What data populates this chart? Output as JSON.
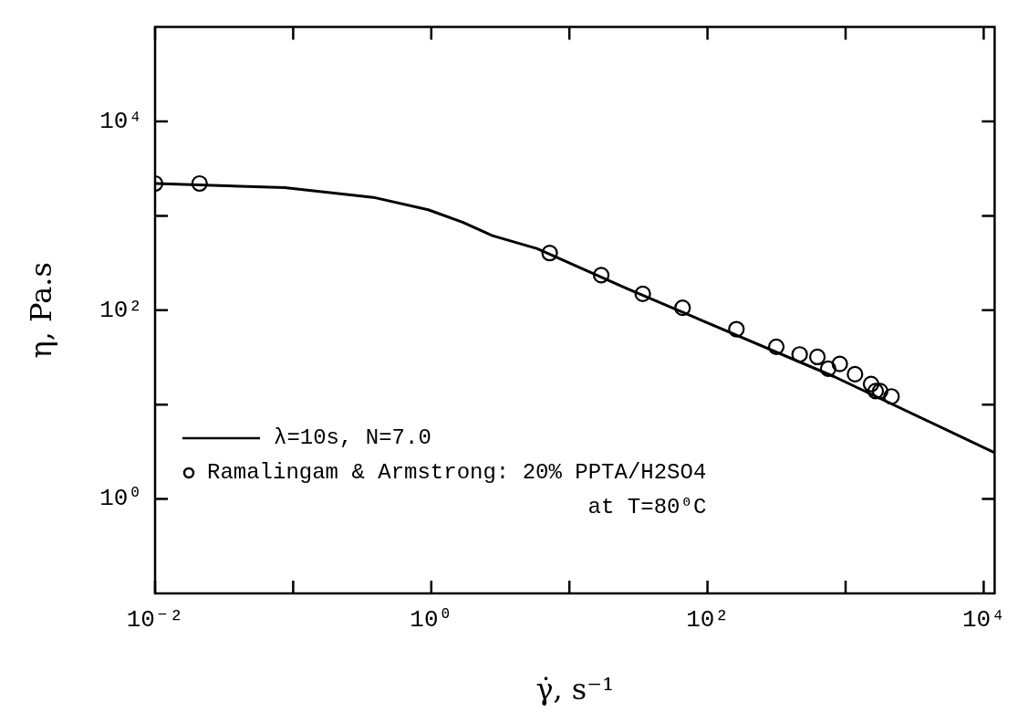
{
  "chart_data": {
    "type": "scatter",
    "xlabel": "γ̇, s⁻¹",
    "ylabel": "η, Pa.s",
    "log": "xy",
    "legend": "bottom left",
    "grid": false,
    "xlim": [
      0.01,
      12000
    ],
    "ylim": [
      0.1,
      100000
    ],
    "xticks": [
      {
        "value": 0.01,
        "label": "10⁻²"
      },
      {
        "value": 0.1,
        "label": null
      },
      {
        "value": 1,
        "label": "10⁰"
      },
      {
        "value": 10,
        "label": null
      },
      {
        "value": 100,
        "label": "10²"
      },
      {
        "value": 1000,
        "label": null
      },
      {
        "value": 10000,
        "label": "10⁴"
      }
    ],
    "yticks": [
      {
        "value": 1,
        "label": "10⁰"
      },
      {
        "value": 10,
        "label": null
      },
      {
        "value": 100,
        "label": "10²"
      },
      {
        "value": 1000,
        "label": null
      },
      {
        "value": 10000,
        "label": "10⁴"
      }
    ],
    "series": [
      {
        "name": "λ=10s, N=7.0",
        "type": "line",
        "marker": "none",
        "line_style": "solid",
        "color": "#000000",
        "x": [
          0.01,
          0.0865,
          0.38,
          0.95,
          1.7,
          2.77,
          5.85,
          25.9,
          832,
          12000
        ],
        "values": [
          2200,
          1990,
          1570,
          1160,
          850,
          617,
          449,
          170,
          19.7,
          3.1
        ]
      },
      {
        "name": "Ramalingam & Armstrong: 20% PPTA/H2SO4",
        "marker": "circle",
        "color": "#000000",
        "x": [
          0.01,
          0.021,
          7.2,
          17,
          34,
          66,
          162,
          315,
          465,
          625,
          748,
          908,
          1170,
          1530,
          1650,
          1780,
          2150
        ],
        "values": [
          2200,
          2200,
          403,
          235,
          149,
          106,
          63,
          41,
          34,
          32,
          24,
          27,
          21,
          16.5,
          13.9,
          13.9,
          12.2
        ]
      }
    ],
    "annotations": [
      "at T=80⁰C"
    ]
  }
}
